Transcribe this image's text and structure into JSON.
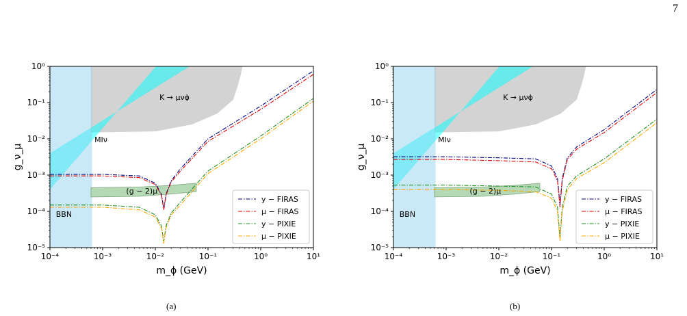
{
  "page_number": "7",
  "chart_data": [
    {
      "caption": "(a)",
      "type": "line",
      "log_x": true,
      "log_y": true,
      "xlabel": "m_ϕ (GeV)",
      "ylabel": "g_ν_μ",
      "xlim": [
        0.0001,
        10
      ],
      "ylim": [
        1e-05,
        1
      ],
      "x_ticks": [
        "10⁻⁴",
        "10⁻³",
        "10⁻²",
        "10⁻¹",
        "10⁰",
        "10¹"
      ],
      "y_ticks": [
        "10⁻⁵",
        "10⁻⁴",
        "10⁻³",
        "10⁻²",
        "10⁻¹",
        "10⁰"
      ],
      "legend_position": "lower-right",
      "regions": [
        {
          "label": "BBN",
          "color": "#87ceeb"
        },
        {
          "label": "MIν",
          "color": "#00ffff"
        },
        {
          "label": "K → μνϕ",
          "color": "#c8c8c8"
        },
        {
          "label": "(g − 2)μ",
          "color": "#a9d3a9"
        }
      ],
      "series": [
        {
          "name": "y − FIRAS",
          "color": "#000080",
          "x": [
            0.0001,
            0.001,
            0.005,
            0.01,
            0.013,
            0.0145,
            0.016,
            0.02,
            0.03,
            0.1,
            1,
            10
          ],
          "y": [
            0.00105,
            0.00105,
            0.00095,
            0.0006,
            0.0003,
            0.00012,
            0.0003,
            0.0007,
            0.0015,
            0.01,
            0.08,
            0.75
          ]
        },
        {
          "name": "μ − FIRAS",
          "color": "#e00000",
          "x": [
            0.0001,
            0.001,
            0.005,
            0.01,
            0.013,
            0.0145,
            0.016,
            0.02,
            0.03,
            0.1,
            1,
            10
          ],
          "y": [
            0.00095,
            0.00095,
            0.00085,
            0.00055,
            0.00028,
            0.00011,
            0.00028,
            0.00065,
            0.0013,
            0.0085,
            0.065,
            0.6
          ]
        },
        {
          "name": "y − PIXIE",
          "color": "#228b22",
          "x": [
            0.0001,
            0.001,
            0.005,
            0.01,
            0.013,
            0.0145,
            0.016,
            0.02,
            0.03,
            0.1,
            1,
            10
          ],
          "y": [
            0.00015,
            0.00015,
            0.00013,
            8e-05,
            4e-05,
            1.5e-05,
            4e-05,
            9e-05,
            0.00018,
            0.0013,
            0.012,
            0.13
          ]
        },
        {
          "name": "μ − PIXIE",
          "color": "#ffa500",
          "x": [
            0.0001,
            0.001,
            0.005,
            0.01,
            0.013,
            0.0145,
            0.016,
            0.02,
            0.03,
            0.1,
            1,
            10
          ],
          "y": [
            0.00013,
            0.00013,
            0.00011,
            7e-05,
            3.5e-05,
            1.3e-05,
            3.5e-05,
            8e-05,
            0.00015,
            0.0011,
            0.01,
            0.11
          ]
        }
      ]
    },
    {
      "caption": "(b)",
      "type": "line",
      "log_x": true,
      "log_y": true,
      "xlabel": "m_ϕ (GeV)",
      "ylabel": "g_ν_μ",
      "xlim": [
        0.0001,
        10
      ],
      "ylim": [
        1e-05,
        1
      ],
      "x_ticks": [
        "10⁻⁴",
        "10⁻³",
        "10⁻²",
        "10⁻¹",
        "10⁰",
        "10¹"
      ],
      "y_ticks": [
        "10⁻⁵",
        "10⁻⁴",
        "10⁻³",
        "10⁻²",
        "10⁻¹",
        "10⁰"
      ],
      "legend_position": "lower-right",
      "regions": [
        {
          "label": "BBN",
          "color": "#87ceeb"
        },
        {
          "label": "MIν",
          "color": "#00ffff"
        },
        {
          "label": "K → μνϕ",
          "color": "#c8c8c8"
        },
        {
          "label": "(g − 2)μ",
          "color": "#a9d3a9"
        }
      ],
      "series": [
        {
          "name": "y − FIRAS",
          "color": "#000080",
          "x": [
            0.0001,
            0.001,
            0.01,
            0.05,
            0.1,
            0.13,
            0.145,
            0.16,
            0.2,
            0.3,
            1,
            10
          ],
          "y": [
            0.0032,
            0.0032,
            0.003,
            0.0028,
            0.0018,
            0.0008,
            0.00015,
            0.0008,
            0.003,
            0.006,
            0.018,
            0.23
          ]
        },
        {
          "name": "μ − FIRAS",
          "color": "#e00000",
          "x": [
            0.0001,
            0.001,
            0.01,
            0.05,
            0.1,
            0.13,
            0.145,
            0.16,
            0.2,
            0.3,
            1,
            10
          ],
          "y": [
            0.0027,
            0.0027,
            0.0025,
            0.0023,
            0.0015,
            0.0007,
            0.00013,
            0.0007,
            0.0027,
            0.0052,
            0.015,
            0.19
          ]
        },
        {
          "name": "y − PIXIE",
          "color": "#228b22",
          "x": [
            0.0001,
            0.001,
            0.01,
            0.05,
            0.1,
            0.13,
            0.145,
            0.16,
            0.2,
            0.3,
            1,
            10
          ],
          "y": [
            0.00053,
            0.00053,
            0.0005,
            0.00047,
            0.0003,
            0.00013,
            1.8e-05,
            0.00013,
            0.0005,
            0.00095,
            0.0028,
            0.035
          ]
        },
        {
          "name": "μ − PIXIE",
          "color": "#ffa500",
          "x": [
            0.0001,
            0.001,
            0.01,
            0.05,
            0.1,
            0.13,
            0.145,
            0.16,
            0.2,
            0.3,
            1,
            10
          ],
          "y": [
            0.0004,
            0.0004,
            0.00038,
            0.00035,
            0.00023,
            0.0001,
            1.5e-05,
            0.0001,
            0.0004,
            0.0008,
            0.0022,
            0.028
          ]
        }
      ]
    }
  ]
}
